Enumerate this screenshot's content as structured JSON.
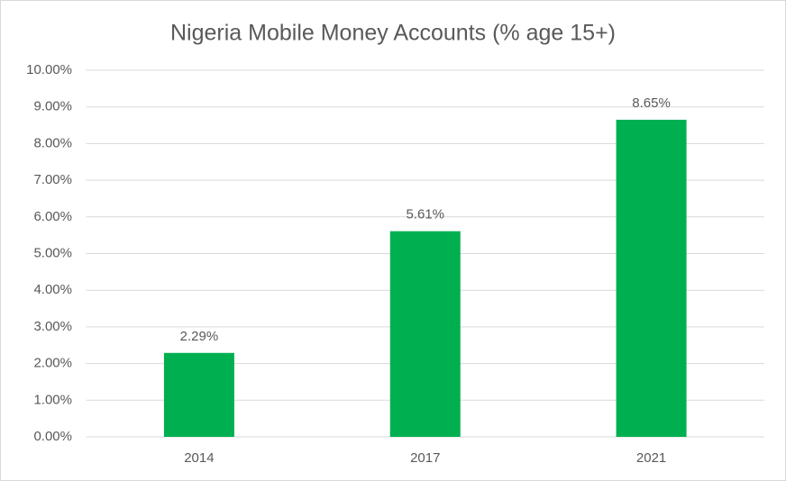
{
  "chart_data": {
    "type": "bar",
    "title": "Nigeria Mobile Money Accounts (% age 15+)",
    "categories": [
      "2014",
      "2017",
      "2021"
    ],
    "values": [
      2.29,
      5.61,
      8.65
    ],
    "value_labels": [
      "2.29%",
      "5.61%",
      "8.65%"
    ],
    "color": "#00b050",
    "ylim": [
      0,
      10
    ],
    "yticks": [
      {
        "value": 0,
        "label": "0.00%"
      },
      {
        "value": 1,
        "label": "1.00%"
      },
      {
        "value": 2,
        "label": "2.00%"
      },
      {
        "value": 3,
        "label": "3.00%"
      },
      {
        "value": 4,
        "label": "4.00%"
      },
      {
        "value": 5,
        "label": "5.00%"
      },
      {
        "value": 6,
        "label": "6.00%"
      },
      {
        "value": 7,
        "label": "7.00%"
      },
      {
        "value": 8,
        "label": "8.00%"
      },
      {
        "value": 9,
        "label": "9.00%"
      },
      {
        "value": 10,
        "label": "10.00%"
      }
    ],
    "grid": true
  }
}
